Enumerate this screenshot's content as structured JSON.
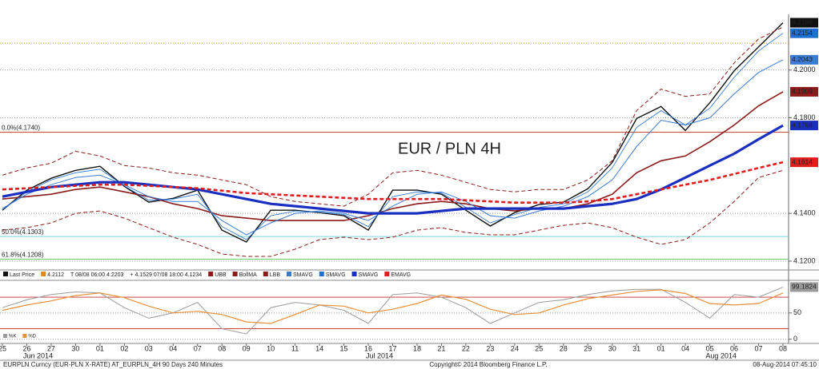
{
  "chart_data": [
    {
      "type": "line",
      "title": "EUR / PLN 4H",
      "title_color": "#e8201e",
      "categories": [
        "25",
        "26",
        "27",
        "30",
        "01",
        "02",
        "03",
        "04",
        "07",
        "08",
        "09",
        "10",
        "11",
        "14",
        "15",
        "16",
        "17",
        "18",
        "21",
        "22",
        "23",
        "24",
        "25",
        "28",
        "29",
        "30",
        "31",
        "01",
        "04",
        "05",
        "06",
        "07",
        "08"
      ],
      "months": [
        {
          "label": "Jun 2014",
          "index": 1
        },
        {
          "label": "Jul 2014",
          "index": 15
        },
        {
          "label": "Aug 2014",
          "index": 29
        }
      ],
      "ylim": [
        4.1163,
        4.2233
      ],
      "yticks": [
        {
          "value": 4.12,
          "label": "4.1200"
        },
        {
          "value": 4.14,
          "label": "4.1400"
        },
        {
          "value": 4.18,
          "label": "4.1800"
        },
        {
          "value": 4.2,
          "label": "4.2000"
        }
      ],
      "grid": true,
      "legend_info": [
        "4.2112",
        "T 08/08 06:00 4.2203",
        "+ 4.1529 07/08 18:00 4.1234"
      ],
      "ref_line": {
        "value": 4.2112,
        "color": "#e08a1e"
      },
      "levels": [
        {
          "label": "0.0%(4.1740)",
          "value": 4.174,
          "color": "#c0302c"
        },
        {
          "label": "50.0%(4.1303)",
          "value": 4.1303,
          "color": "#48c8c8"
        },
        {
          "label": "61.8%(4.1208)",
          "value": 4.1208,
          "color": "#5cc85c"
        }
      ],
      "series": [
        {
          "name": "Last Price",
          "color": "#111111",
          "width": 1.4,
          "dash": false,
          "tag": true,
          "values": [
            4.1413,
            4.1497,
            4.1547,
            4.158,
            4.1597,
            4.1513,
            4.1447,
            4.1463,
            4.1497,
            4.133,
            4.128,
            4.1413,
            4.1413,
            4.1403,
            4.139,
            4.133,
            4.1497,
            4.1497,
            4.148,
            4.1413,
            4.1347,
            4.1403,
            4.1437,
            4.1447,
            4.1503,
            4.1613,
            4.1797,
            4.1847,
            4.1747,
            4.1863,
            4.1997,
            4.2097,
            4.2198
          ]
        },
        {
          "name": "UBB",
          "color": "#8b1a1a",
          "width": 1,
          "dash": true,
          "tag": false,
          "values": [
            4.156,
            4.159,
            4.161,
            4.166,
            4.164,
            4.16,
            4.159,
            4.157,
            4.156,
            4.154,
            4.152,
            4.147,
            4.145,
            4.144,
            4.143,
            4.148,
            4.157,
            4.158,
            4.156,
            4.153,
            4.15,
            4.149,
            4.15,
            4.15,
            4.154,
            4.162,
            4.183,
            4.192,
            4.189,
            4.19,
            4.203,
            4.213,
            4.218
          ]
        },
        {
          "name": "BollMA",
          "color": "#8b1a1a",
          "width": 1.6,
          "dash": false,
          "tag": true,
          "values": [
            4.146,
            4.147,
            4.148,
            4.15,
            4.151,
            4.149,
            4.147,
            4.144,
            4.142,
            4.139,
            4.138,
            4.137,
            4.137,
            4.137,
            4.137,
            4.139,
            4.142,
            4.144,
            4.145,
            4.144,
            4.142,
            4.141,
            4.142,
            4.142,
            4.144,
            4.148,
            4.157,
            4.162,
            4.164,
            4.17,
            4.177,
            4.185,
            4.1909
          ]
        },
        {
          "name": "LBB",
          "color": "#8b1a1a",
          "width": 1,
          "dash": true,
          "tag": false,
          "values": [
            4.133,
            4.134,
            4.136,
            4.14,
            4.141,
            4.138,
            4.134,
            4.13,
            4.127,
            4.123,
            4.122,
            4.122,
            4.125,
            4.129,
            4.13,
            4.129,
            4.13,
            4.133,
            4.134,
            4.132,
            4.131,
            4.131,
            4.133,
            4.135,
            4.136,
            4.134,
            4.13,
            4.127,
            4.129,
            4.136,
            4.145,
            4.155,
            4.158
          ]
        },
        {
          "name": "SMAVG",
          "color": "#3a7bd5",
          "width": 1,
          "dash": false,
          "tag": true,
          "values": [
            4.142,
            4.148,
            4.152,
            4.155,
            4.156,
            4.152,
            4.147,
            4.145,
            4.145,
            4.137,
            4.131,
            4.136,
            4.14,
            4.141,
            4.14,
            4.137,
            4.143,
            4.148,
            4.149,
            4.145,
            4.139,
            4.138,
            4.141,
            4.143,
            4.147,
            4.154,
            4.168,
            4.179,
            4.177,
            4.18,
            4.19,
            4.199,
            4.2043
          ]
        },
        {
          "name": "SMAVG",
          "color": "#1e6fd0",
          "width": 0.8,
          "dash": false,
          "tag": true,
          "values": [
            4.1415,
            4.149,
            4.154,
            4.157,
            4.1585,
            4.1515,
            4.1455,
            4.146,
            4.148,
            4.1345,
            4.129,
            4.139,
            4.141,
            4.1405,
            4.1395,
            4.1345,
            4.147,
            4.149,
            4.1485,
            4.1425,
            4.136,
            4.1395,
            4.1425,
            4.144,
            4.149,
            4.159,
            4.176,
            4.183,
            4.177,
            4.184,
            4.197,
            4.208,
            4.2154
          ]
        },
        {
          "name": "SMAVG",
          "color": "#1a2fc0",
          "width": 3.2,
          "dash": false,
          "tag": true,
          "values": [
            4.147,
            4.149,
            4.151,
            4.152,
            4.153,
            4.153,
            4.152,
            4.151,
            4.15,
            4.148,
            4.146,
            4.144,
            4.143,
            4.142,
            4.141,
            4.14,
            4.14,
            4.14,
            4.141,
            4.142,
            4.142,
            4.142,
            4.142,
            4.142,
            4.143,
            4.144,
            4.146,
            4.15,
            4.155,
            4.16,
            4.165,
            4.171,
            4.1768
          ]
        },
        {
          "name": "EMAVG",
          "color": "#e01e1e",
          "width": 2.6,
          "dash": true,
          "tag": true,
          "values": [
            4.15,
            4.1505,
            4.151,
            4.1515,
            4.152,
            4.152,
            4.1515,
            4.151,
            4.1505,
            4.1495,
            4.1485,
            4.148,
            4.1475,
            4.147,
            4.1465,
            4.146,
            4.146,
            4.146,
            4.146,
            4.1455,
            4.145,
            4.1445,
            4.1445,
            4.1445,
            4.145,
            4.146,
            4.148,
            4.15,
            4.152,
            4.154,
            4.1565,
            4.159,
            4.1614
          ]
        }
      ]
    },
    {
      "type": "line",
      "ylim": [
        -8,
        112
      ],
      "yticks": [
        0,
        50
      ],
      "levels": [
        {
          "value": 80,
          "color": "#c0302c"
        },
        {
          "value": 20,
          "color": "#c0302c"
        }
      ],
      "series": [
        {
          "name": "%K",
          "color": "#9a9a9a",
          "width": 1,
          "tag": true,
          "values": [
            60,
            75,
            85,
            90,
            88,
            60,
            40,
            50,
            70,
            20,
            10,
            60,
            70,
            65,
            55,
            30,
            85,
            88,
            80,
            60,
            30,
            50,
            70,
            75,
            85,
            92,
            95,
            95,
            70,
            40,
            85,
            80,
            99.1824
          ]
        },
        {
          "name": "%D",
          "color": "#e8903a",
          "width": 1.2,
          "tag": false,
          "values": [
            55,
            65,
            73,
            83,
            88,
            79,
            63,
            50,
            53,
            47,
            33,
            30,
            47,
            65,
            63,
            50,
            57,
            68,
            84,
            76,
            57,
            47,
            50,
            65,
            77,
            84,
            91,
            94,
            87,
            68,
            65,
            68,
            88
          ]
        }
      ]
    }
  ],
  "footer": {
    "left": "EURPLN Curncy (EUR-PLN X-RATE) AT_EURPLN_4H 90 Days 240 Minutes",
    "center": "Copyright© 2014 Bloomberg Finance L.P.",
    "right": "08-Aug-2014 07:45:10"
  }
}
